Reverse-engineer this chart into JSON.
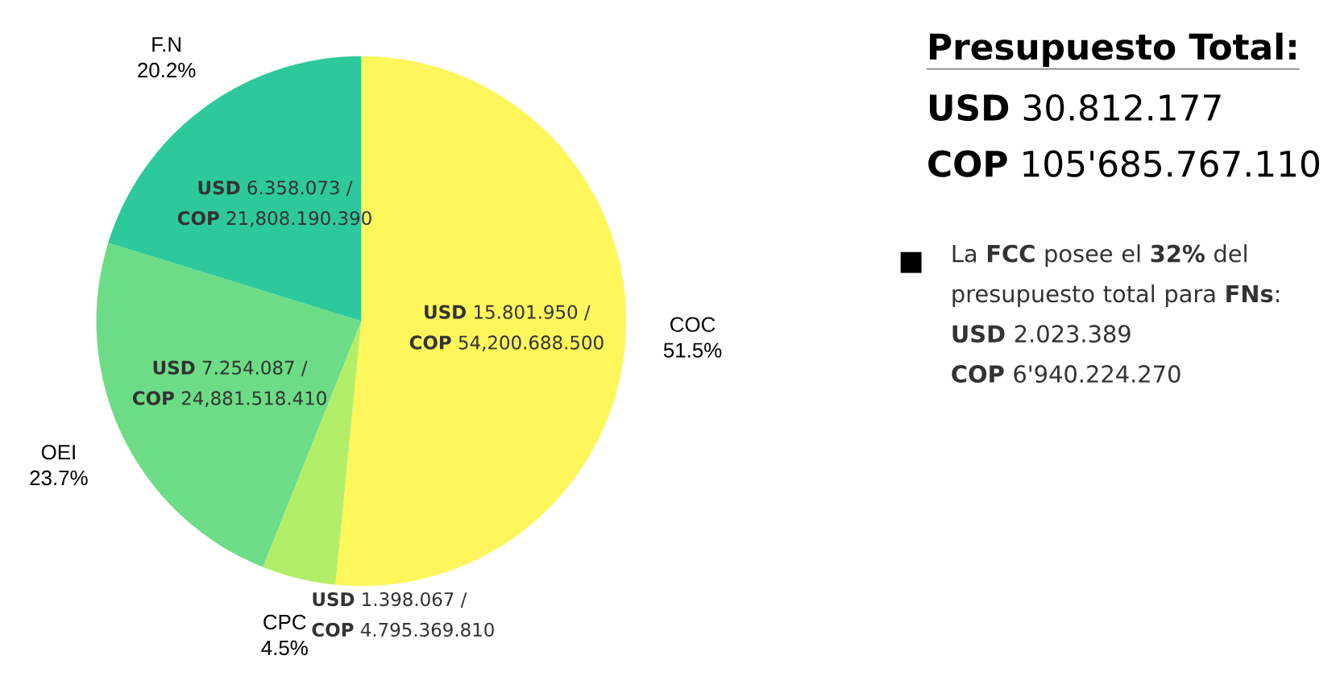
{
  "chart_data": {
    "type": "pie",
    "title": "Presupuesto Total:",
    "categories": [
      "COC",
      "CPC",
      "OEI",
      "F.N"
    ],
    "values": [
      51.5,
      4.5,
      23.7,
      20.2
    ],
    "value_labels": [
      "51.5%",
      "4.5%",
      "23.7%",
      "20.2%"
    ],
    "colors": [
      "#fef65a",
      "#b3ee68",
      "#6ddc86",
      "#2dc99c"
    ],
    "annotations": [
      {
        "text": "**USD** 15.801.950  /",
        "x": "COC"
      },
      {
        "text": "**COP** 54,200.688.500",
        "x": "COC"
      },
      {
        "text": "**USD** 1.398.067  /",
        "x": "CPC"
      },
      {
        "text": "**COP** 4.795.369.810",
        "x": "CPC"
      },
      {
        "text": "**USD** 7.254.087  /",
        "x": "OEI"
      },
      {
        "text": "**COP** 24,881.518.410",
        "x": "OEI"
      },
      {
        "text": "**USD** 6.358.073  /",
        "x": "F.N"
      },
      {
        "text": "**COP** 21,808.190.390",
        "x": "F.N"
      },
      "**USD** 30.812.177",
      "**COP** 105'685.767.110",
      "La **FCC** posee el **32%** del presupuesto total para **FNs**:",
      "**USD** 2.023.389",
      "**COP** 6'940.224.270"
    ]
  }
}
